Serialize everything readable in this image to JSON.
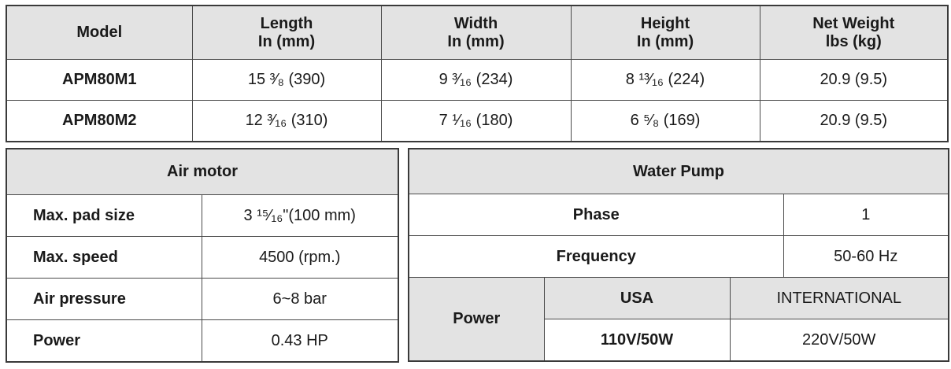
{
  "dimensions": {
    "headers": {
      "model": "Model",
      "length": [
        "Length",
        "In (mm)"
      ],
      "width": [
        "Width",
        "In (mm)"
      ],
      "height": [
        "Height",
        "In (mm)"
      ],
      "weight": [
        "Net Weight",
        "lbs (kg)"
      ]
    },
    "rows": [
      {
        "model": "APM80M1",
        "length": "15 ³⁄₈ (390)",
        "width": "9 ³⁄₁₆ (234)",
        "height": "8 ¹³⁄₁₆ (224)",
        "weight": "20.9 (9.5)"
      },
      {
        "model": "APM80M2",
        "length": "12 ³⁄₁₆ (310)",
        "width": "7 ¹⁄₁₆ (180)",
        "height": "6 ⁵⁄₈ (169)",
        "weight": "20.9 (9.5)"
      }
    ]
  },
  "air_motor": {
    "title": "Air motor",
    "rows": [
      {
        "label": "Max. pad size",
        "value": "3 ¹⁵⁄₁₆\"(100 mm)"
      },
      {
        "label": "Max. speed",
        "value": "4500 (rpm.)"
      },
      {
        "label": "Air pressure",
        "value": "6~8 bar"
      },
      {
        "label": "Power",
        "value": "0.43 HP"
      }
    ]
  },
  "water_pump": {
    "title": "Water Pump",
    "phase_label": "Phase",
    "phase_value": "1",
    "frequency_label": "Frequency",
    "frequency_value": "50-60 Hz",
    "power_label": "Power",
    "usa_label": "USA",
    "intl_label": "INTERNATIONAL",
    "usa_value": "110V/50W",
    "intl_value": "220V/50W"
  }
}
